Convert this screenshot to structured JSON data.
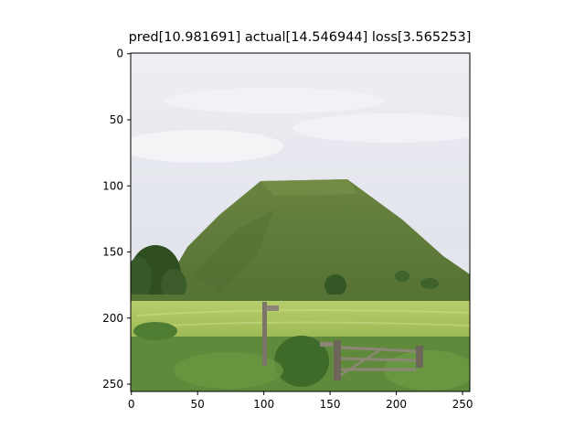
{
  "figure": {
    "title": "pred[10.981691] actual[14.546944] loss[3.565253]",
    "image": {
      "description_icon": "landscape-image",
      "x_range": [
        0,
        255
      ],
      "y_range": [
        0,
        255
      ],
      "x_ticks": [
        {
          "value": 0,
          "label": "0"
        },
        {
          "value": 50,
          "label": "50"
        },
        {
          "value": 100,
          "label": "100"
        },
        {
          "value": 150,
          "label": "150"
        },
        {
          "value": 200,
          "label": "200"
        },
        {
          "value": 250,
          "label": "250"
        }
      ],
      "y_ticks": [
        {
          "value": 0,
          "label": "0"
        },
        {
          "value": 50,
          "label": "50"
        },
        {
          "value": 100,
          "label": "100"
        },
        {
          "value": 150,
          "label": "150"
        },
        {
          "value": 200,
          "label": "200"
        },
        {
          "value": 250,
          "label": "250"
        }
      ]
    },
    "colors": {
      "sky_top": "#e6e7ef",
      "hill": "#5f7b3d",
      "hill_dark": "#4d6a31",
      "field": "#a9c35f",
      "grass": "#5f8a3b",
      "trees": "#2f4f22"
    }
  }
}
